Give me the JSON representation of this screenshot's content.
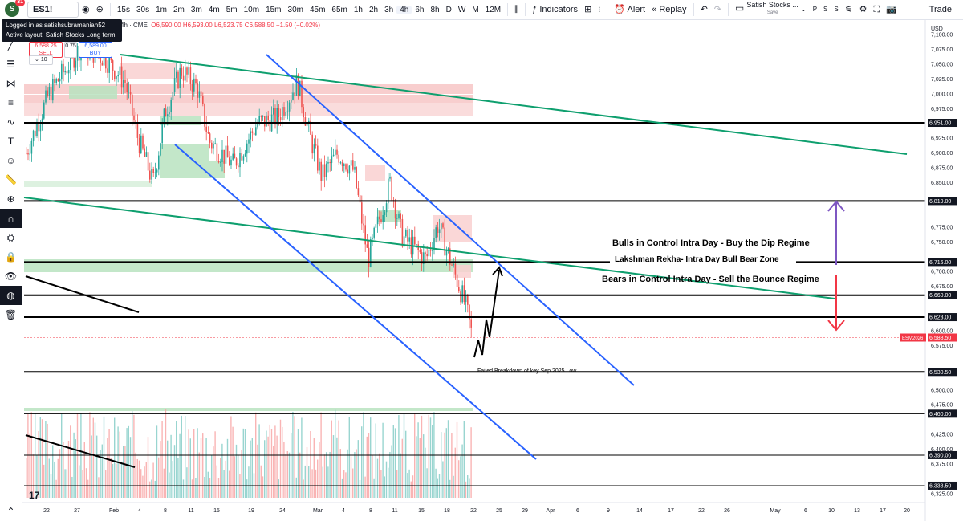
{
  "header": {
    "avatar_letter": "S",
    "notif_count": "31",
    "symbol": "ES1!",
    "timeframes": [
      "15s",
      "30s",
      "1m",
      "2m",
      "3m",
      "4m",
      "5m",
      "10m",
      "15m",
      "30m",
      "45m",
      "65m",
      "1h",
      "2h",
      "3h",
      "4h",
      "6h",
      "8h",
      "D",
      "W",
      "M",
      "12M"
    ],
    "active_timeframe": "4h",
    "indicators_label": "Indicators",
    "alert_label": "Alert",
    "replay_label": "Replay",
    "layout_name": "Satish Stocks ...",
    "layout_save": "Save",
    "small_letters": [
      "P",
      "S",
      "S"
    ],
    "trade_label": "Trade"
  },
  "tooltip": {
    "line1": "Logged in as satishsubramanian52",
    "line2": "Active layout: Satish Stocks Long term"
  },
  "legend": {
    "interval": "4h · CME",
    "ohlc": "O6,590.00 H6,593.00 L6,523.75 C6,588.50 −1.50 (−0.02%)"
  },
  "order": {
    "sell_price": "6,588.25",
    "sell_label": "SELL",
    "spread": "0.75",
    "buy_price": "6,589.00",
    "buy_label": "BUY",
    "qty": "10"
  },
  "price_axis": {
    "currency": "USD",
    "ticks": [
      "7,100.00",
      "7,075.00",
      "7,050.00",
      "7,025.00",
      "7,000.00",
      "6,975.00",
      "6,925.00",
      "6,900.00",
      "6,875.00",
      "6,850.00",
      "6,775.00",
      "6,750.00",
      "6,700.00",
      "6,675.00",
      "6,600.00",
      "6,575.00",
      "6,500.00",
      "6,475.00",
      "6,425.00",
      "6,400.00",
      "6,375.00",
      "6,325.00"
    ],
    "level_labels": [
      {
        "price": 6951.0,
        "text": "6,951.00"
      },
      {
        "price": 6819.0,
        "text": "6,819.00"
      },
      {
        "price": 6716.0,
        "text": "6,716.00"
      },
      {
        "price": 6660.0,
        "text": "6,660.00"
      },
      {
        "price": 6623.0,
        "text": "6,623.00"
      },
      {
        "price": 6530.5,
        "text": "6,530.50"
      },
      {
        "price": 6460.0,
        "text": "6,460.00"
      },
      {
        "price": 6390.0,
        "text": "6,390.00"
      },
      {
        "price": 6338.5,
        "text": "6,338.50"
      }
    ],
    "last_price_symbol": "ESM2026",
    "last_price": "6,588.50"
  },
  "time_axis": [
    "22",
    "27",
    "Feb",
    "4",
    "8",
    "11",
    "15",
    "19",
    "24",
    "Mar",
    "4",
    "8",
    "11",
    "15",
    "18",
    "22",
    "25",
    "29",
    "Apr",
    "6",
    "9",
    "14",
    "17",
    "22",
    "26",
    "May",
    "6",
    "10",
    "13",
    "17",
    "20"
  ],
  "annotations": {
    "bulls": "Bulls in Control Intra Day - Buy the Dip Regime",
    "rekha": "Lakshman Rekha- Intra Day Bull Bear Zone",
    "bears": "Bears in Control Intra Day - Sell the Bounce Regime",
    "breakdown": "Failed Breakdown of key Sep 2025 Low"
  },
  "chart_data": {
    "type": "candlestick",
    "symbol": "ES1!",
    "interval": "4h",
    "ylim": [
      6310,
      7115
    ],
    "last_price": 6588.5,
    "horizontal_levels": [
      6951,
      6819,
      6716,
      6660,
      6623,
      6530.5,
      6460,
      6390,
      6338.5
    ],
    "colors": {
      "up": "#26a69a",
      "down": "#ef5350",
      "trend_green": "#0e9f6e",
      "channel_blue": "#2962ff",
      "level": "#000000",
      "bull_arrow": "#7e57c2",
      "bear_arrow": "#f23645"
    }
  }
}
